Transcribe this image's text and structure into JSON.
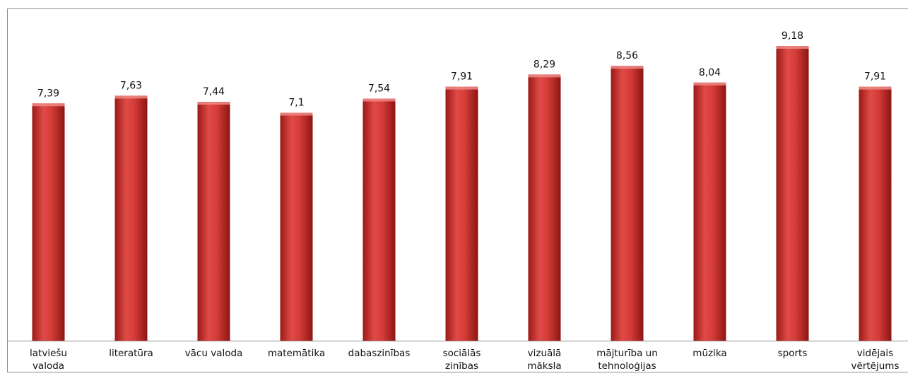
{
  "chart_data": {
    "type": "bar",
    "categories": [
      [
        "latviešu",
        "valoda"
      ],
      [
        "literatūra"
      ],
      [
        "vācu valoda"
      ],
      [
        "matemātika"
      ],
      [
        "dabaszinības"
      ],
      [
        "sociālās",
        "zinības"
      ],
      [
        "vizuālā",
        "māksla"
      ],
      [
        "mājturība un",
        "tehnoloģijas"
      ],
      [
        "mūzika"
      ],
      [
        "sports"
      ],
      [
        "vidējais",
        "vērtējums"
      ]
    ],
    "values": [
      7.39,
      7.63,
      7.44,
      7.1,
      7.54,
      7.91,
      8.29,
      8.56,
      8.04,
      9.18,
      7.91
    ],
    "value_labels": [
      "7,39",
      "7,63",
      "7,44",
      "7,1",
      "7,54",
      "7,91",
      "8,29",
      "8,56",
      "8,04",
      "9,18",
      "7,91"
    ],
    "ylim": [
      0,
      10
    ],
    "grid": false,
    "legend": "none",
    "colors": {
      "bar_light": "#e8524f",
      "bar_mid": "#c9302c",
      "bar_dark": "#8c1512",
      "frame": "#8c8c8c",
      "axis": "#8c8c8c"
    }
  }
}
